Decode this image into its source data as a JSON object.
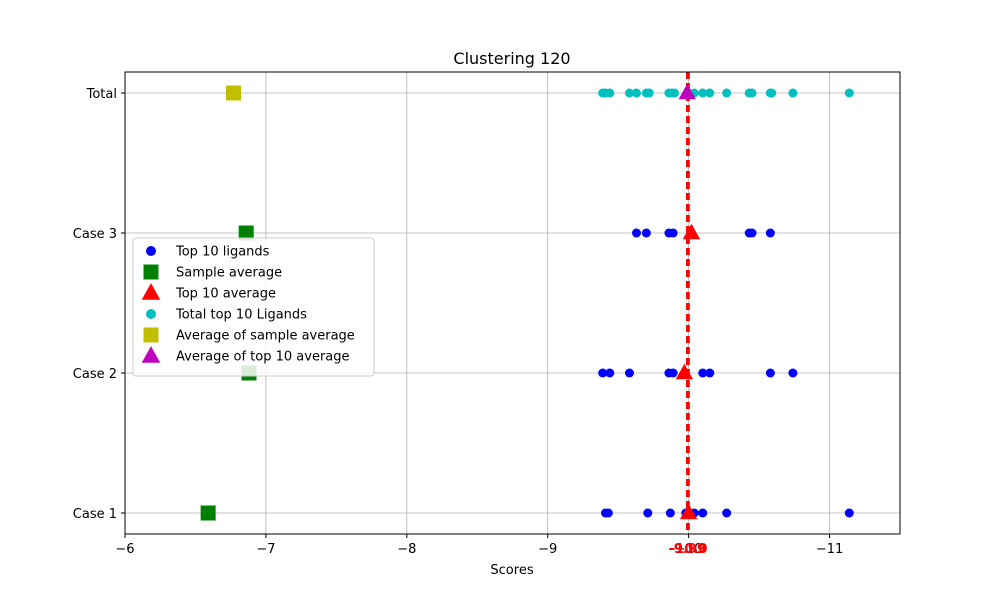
{
  "chart_data": {
    "type": "scatter",
    "title": "Clustering 120",
    "xlabel": "Scores",
    "ylabel": "",
    "xlim": [
      -6,
      -11.5
    ],
    "x_inverted": true,
    "x_ticks": [
      -6,
      -7,
      -8,
      -9,
      -10,
      -11
    ],
    "x_tick_labels": [
      "−6",
      "−7",
      "−8",
      "−9",
      "−10",
      "−11"
    ],
    "categories": [
      "Case 1",
      "Case 2",
      "Case 3",
      "Total"
    ],
    "grid": true,
    "legend_position": "center-left",
    "reference_lines": [
      {
        "value": -9.99,
        "label": "-9.99",
        "color": "#ff0000",
        "style": "dashed"
      },
      {
        "value": -10.0,
        "label": "-10.0",
        "color": "#ff0000",
        "style": "dashed"
      }
    ],
    "series": [
      {
        "name": "Top 10 ligands",
        "marker": "circle",
        "color": "#0000ff",
        "points": [
          {
            "category": "Case 1",
            "x": -9.41
          },
          {
            "category": "Case 1",
            "x": -9.43
          },
          {
            "category": "Case 1",
            "x": -9.71
          },
          {
            "category": "Case 1",
            "x": -9.87
          },
          {
            "category": "Case 1",
            "x": -9.98
          },
          {
            "category": "Case 1",
            "x": -10.0
          },
          {
            "category": "Case 1",
            "x": -10.04
          },
          {
            "category": "Case 1",
            "x": -10.1
          },
          {
            "category": "Case 1",
            "x": -10.27
          },
          {
            "category": "Case 1",
            "x": -11.14
          },
          {
            "category": "Case 2",
            "x": -9.39
          },
          {
            "category": "Case 2",
            "x": -9.44
          },
          {
            "category": "Case 2",
            "x": -9.58
          },
          {
            "category": "Case 2",
            "x": -9.86
          },
          {
            "category": "Case 2",
            "x": -9.89
          },
          {
            "category": "Case 2",
            "x": -10.1
          },
          {
            "category": "Case 2",
            "x": -10.15
          },
          {
            "category": "Case 2",
            "x": -10.58
          },
          {
            "category": "Case 2",
            "x": -10.74
          },
          {
            "category": "Case 3",
            "x": -9.63
          },
          {
            "category": "Case 3",
            "x": -9.7
          },
          {
            "category": "Case 3",
            "x": -9.86
          },
          {
            "category": "Case 3",
            "x": -9.89
          },
          {
            "category": "Case 3",
            "x": -10.43
          },
          {
            "category": "Case 3",
            "x": -10.45
          },
          {
            "category": "Case 3",
            "x": -10.58
          }
        ]
      },
      {
        "name": "Sample average",
        "marker": "square",
        "color": "#008000",
        "points": [
          {
            "category": "Case 1",
            "x": -6.59
          },
          {
            "category": "Case 2",
            "x": -6.88
          },
          {
            "category": "Case 3",
            "x": -6.86
          }
        ]
      },
      {
        "name": "Top 10 average",
        "marker": "triangle",
        "color": "#ff0000",
        "points": [
          {
            "category": "Case 1",
            "x": -10.0
          },
          {
            "category": "Case 2",
            "x": -9.97
          },
          {
            "category": "Case 3",
            "x": -10.02
          }
        ]
      },
      {
        "name": "Total top 10 Ligands",
        "marker": "circle",
        "color": "#00bfbf",
        "points": [
          {
            "category": "Total",
            "x": -9.39
          },
          {
            "category": "Total",
            "x": -9.41
          },
          {
            "category": "Total",
            "x": -9.44
          },
          {
            "category": "Total",
            "x": -9.58
          },
          {
            "category": "Total",
            "x": -9.63
          },
          {
            "category": "Total",
            "x": -9.7
          },
          {
            "category": "Total",
            "x": -9.72
          },
          {
            "category": "Total",
            "x": -9.86
          },
          {
            "category": "Total",
            "x": -9.88
          },
          {
            "category": "Total",
            "x": -9.9
          },
          {
            "category": "Total",
            "x": -10.0
          },
          {
            "category": "Total",
            "x": -10.04
          },
          {
            "category": "Total",
            "x": -10.1
          },
          {
            "category": "Total",
            "x": -10.15
          },
          {
            "category": "Total",
            "x": -10.27
          },
          {
            "category": "Total",
            "x": -10.43
          },
          {
            "category": "Total",
            "x": -10.45
          },
          {
            "category": "Total",
            "x": -10.58
          },
          {
            "category": "Total",
            "x": -10.59
          },
          {
            "category": "Total",
            "x": -10.74
          },
          {
            "category": "Total",
            "x": -11.14
          }
        ]
      },
      {
        "name": "Average of sample average",
        "marker": "square",
        "color": "#bfbf00",
        "points": [
          {
            "category": "Total",
            "x": -6.77
          }
        ]
      },
      {
        "name": "Average of top 10 average",
        "marker": "triangle",
        "color": "#bf00bf",
        "points": [
          {
            "category": "Total",
            "x": -9.99
          }
        ]
      }
    ]
  }
}
